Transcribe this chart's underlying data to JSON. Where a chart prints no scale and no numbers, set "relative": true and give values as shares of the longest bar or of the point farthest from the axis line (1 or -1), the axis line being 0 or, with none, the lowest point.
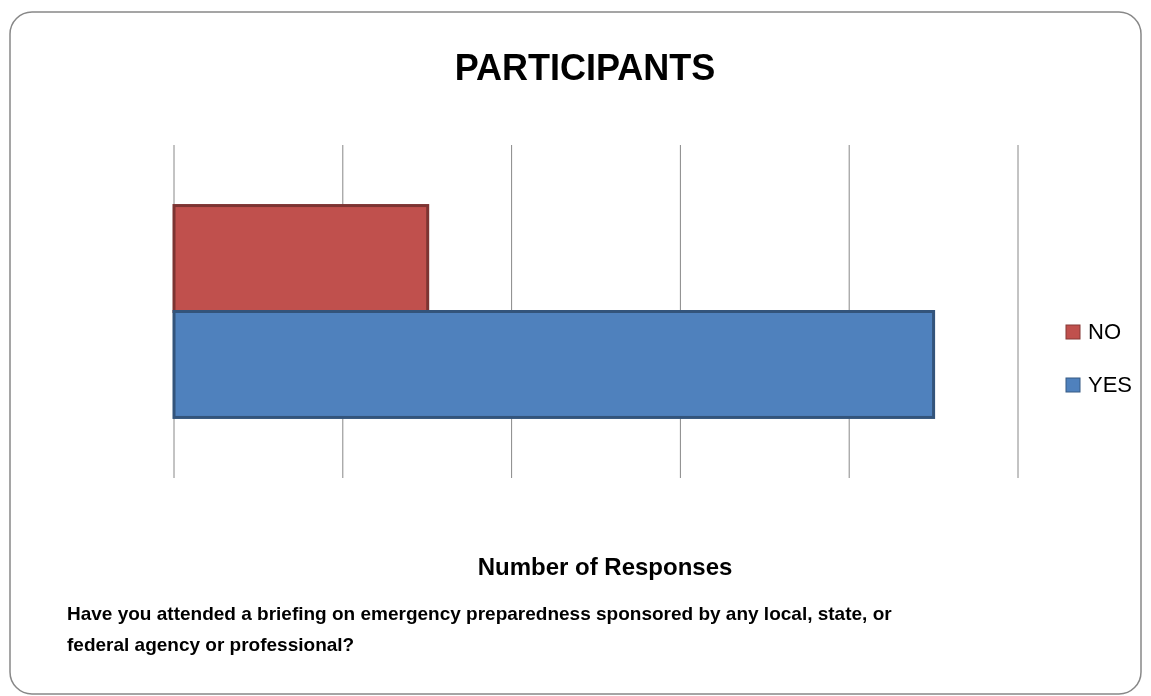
{
  "chart_data": {
    "type": "bar",
    "orientation": "horizontal",
    "relative": true,
    "title": "PARTICIPANTS",
    "xlabel": "Number of Responses",
    "annotations": [
      "Have you attended a briefing on emergency preparedness sponsored by any local, state, or federal agency or professional?"
    ],
    "categories": [
      null
    ],
    "series": [
      {
        "name": "NO",
        "color": "#c0504d",
        "values": [
          0.334
        ]
      },
      {
        "name": "YES",
        "color": "#4f81bd",
        "values": [
          1
        ]
      }
    ],
    "grid": "x",
    "legend": "right"
  }
}
